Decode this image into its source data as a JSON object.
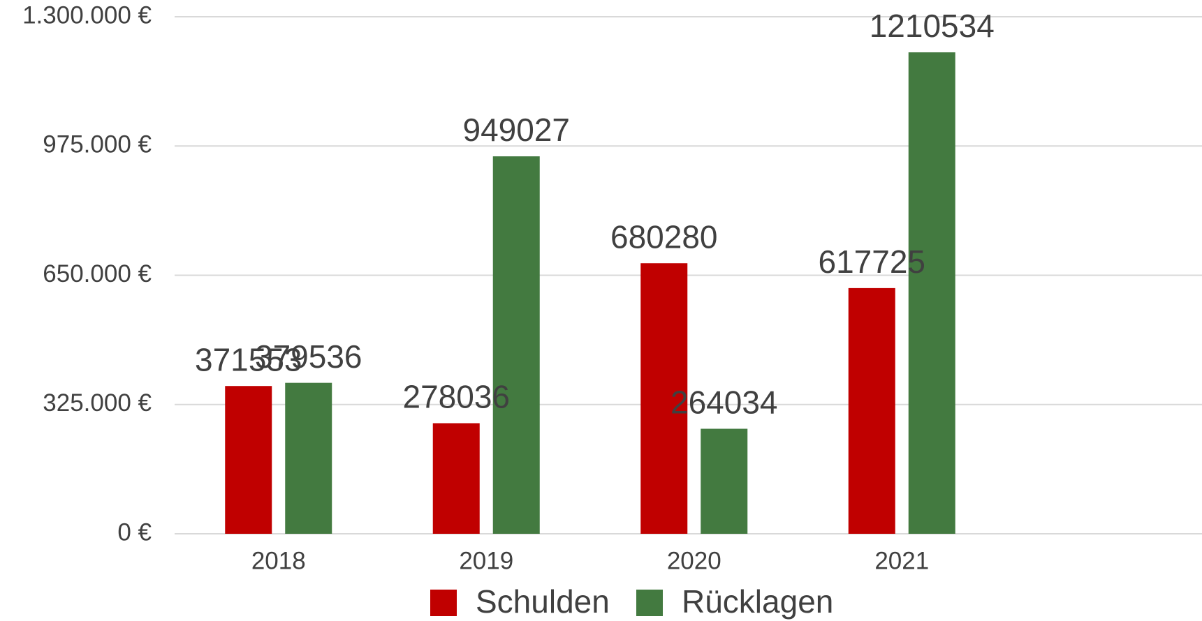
{
  "chart_data": {
    "type": "bar",
    "categories": [
      "2018",
      "2019",
      "2020",
      "2021"
    ],
    "series": [
      {
        "name": "Schulden",
        "color": "#c00000",
        "values": [
          371553,
          278036,
          680280,
          617725
        ]
      },
      {
        "name": "Rücklagen",
        "color": "#437a40",
        "values": [
          379536,
          949027,
          264034,
          1210534
        ]
      }
    ],
    "ylim": [
      0,
      1300000
    ],
    "yticks": [
      {
        "value": 0,
        "label": "0 €"
      },
      {
        "value": 325000,
        "label": "325.000 €"
      },
      {
        "value": 650000,
        "label": "650.000 €"
      },
      {
        "value": 975000,
        "label": "975.000 €"
      },
      {
        "value": 1300000,
        "label": "1.300.000 €"
      }
    ],
    "grid": true,
    "legend": "bottom"
  }
}
